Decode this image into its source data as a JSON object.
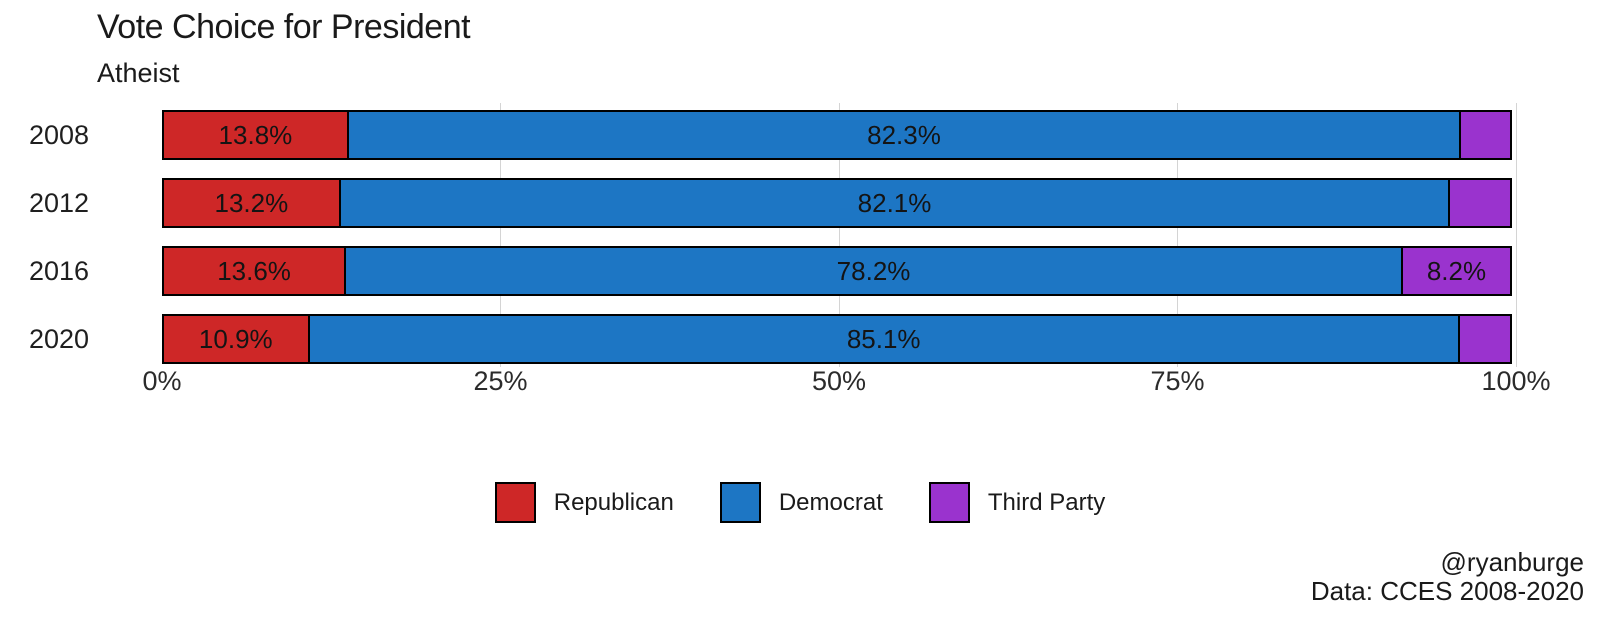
{
  "title": "Vote Choice for President",
  "subtitle": "Atheist",
  "colors": {
    "republican": "#CE2727",
    "democrat": "#1D76C4",
    "third_party": "#9A33CE",
    "grid": "#D4D4D4",
    "text": "#1A1A1A"
  },
  "axis": {
    "ticks": [
      "0%",
      "25%",
      "50%",
      "75%",
      "100%"
    ],
    "min": 0,
    "max": 100
  },
  "legend": {
    "items": [
      {
        "label": "Republican",
        "color_key": "republican"
      },
      {
        "label": "Democrat",
        "color_key": "democrat"
      },
      {
        "label": "Third Party",
        "color_key": "third_party"
      }
    ]
  },
  "footer": {
    "line1": "@ryanburge",
    "line2": "Data: CCES 2008-2020"
  },
  "chart_data": {
    "type": "bar",
    "orientation": "horizontal",
    "stacked": true,
    "title": "Vote Choice for President",
    "subtitle": "Atheist",
    "categories": [
      "2008",
      "2012",
      "2016",
      "2020"
    ],
    "series": [
      {
        "name": "Republican",
        "color_key": "republican",
        "values": [
          13.8,
          13.2,
          13.6,
          10.9
        ],
        "labels": [
          "13.8%",
          "13.2%",
          "13.6%",
          "10.9%"
        ]
      },
      {
        "name": "Democrat",
        "color_key": "democrat",
        "values": [
          82.3,
          82.1,
          78.2,
          85.1
        ],
        "labels": [
          "82.3%",
          "82.1%",
          "78.2%",
          "85.1%"
        ]
      },
      {
        "name": "Third Party",
        "color_key": "third_party",
        "values": [
          3.9,
          4.7,
          8.2,
          4.0
        ],
        "labels": [
          "",
          "",
          "8.2%",
          ""
        ]
      }
    ],
    "xlabel": "",
    "ylabel": "",
    "xlim": [
      0,
      100
    ],
    "x_ticks": [
      "0%",
      "25%",
      "50%",
      "75%",
      "100%"
    ],
    "grid": "faint vertical lines at ticks",
    "legend_position": "bottom"
  }
}
